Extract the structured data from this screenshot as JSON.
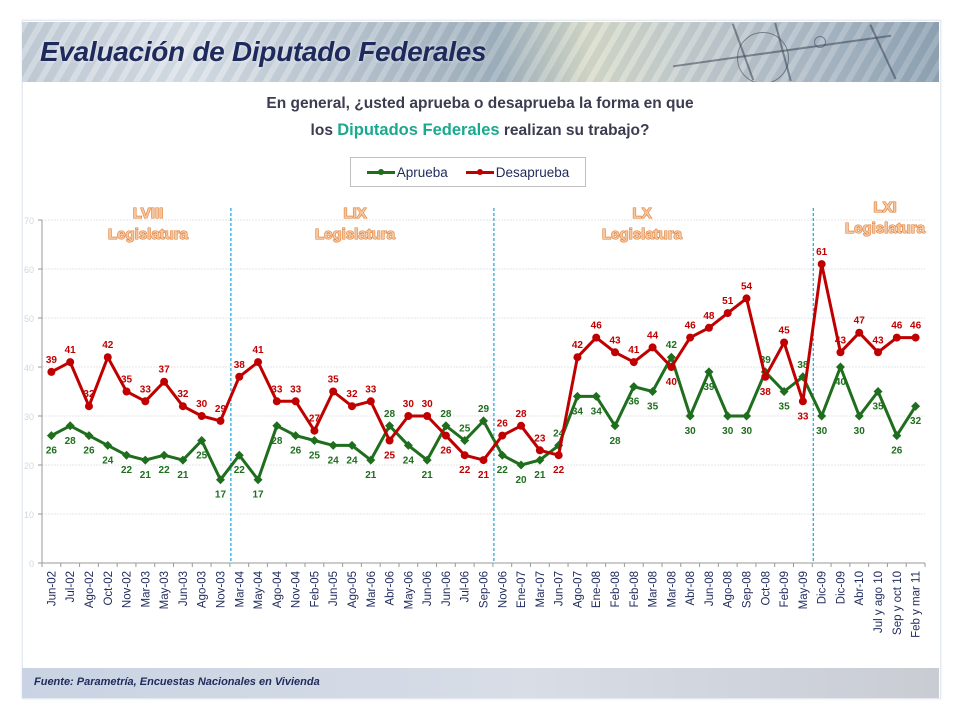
{
  "header": {
    "title": "Evaluación de Diputado Federales"
  },
  "question": {
    "line1": "En general, ¿usted aprueba o desaprueba la forma en que",
    "line2_prefix": "los",
    "line2_highlight": "Diputados Federales",
    "line2_suffix": "realizan su trabajo?"
  },
  "legend": {
    "items": [
      {
        "label": "Aprueba",
        "color": "#1e6e1e"
      },
      {
        "label": "Desaprueba",
        "color": "#c00000"
      }
    ]
  },
  "footer": {
    "source": "Fuente: Parametría, Encuestas Nacionales en Vivienda"
  },
  "chart_data": {
    "type": "line",
    "title": "Evaluación de Diputado Federales",
    "xlabel": "",
    "ylabel": "",
    "ylim": [
      0,
      70
    ],
    "yticks": [
      0,
      10,
      20,
      30,
      40,
      50,
      60,
      70
    ],
    "grid": true,
    "legend_position": "top-center",
    "categories": [
      "Jun-02",
      "Jul-02",
      "Ago-02",
      "Oct-02",
      "Nov-02",
      "Mar-03",
      "May-03",
      "Jun-03",
      "Ago-03",
      "Nov-03",
      "Mar-04",
      "May-04",
      "Ago-04",
      "Nov-04",
      "Feb-05",
      "Jun-05",
      "Ago-05",
      "Mar-06",
      "Abr-06",
      "May-06",
      "Jun-06",
      "Jun-06",
      "Jul-06",
      "Sep-06",
      "Nov-06",
      "Ene-07",
      "Mar-07",
      "Jun-07",
      "Ago-07",
      "Ene-08",
      "Feb-08",
      "Feb-08",
      "Mar-08",
      "Mar-08",
      "Abr-08",
      "Jun-08",
      "Ago-08",
      "Sep-08",
      "Oct-08",
      "Feb-09",
      "May-09",
      "Dic-09",
      "Dic-09",
      "Abr-10",
      "Jul y ago 10",
      "Sep y oct 10",
      "Feb y mar 11"
    ],
    "series": [
      {
        "name": "Aprueba",
        "color": "#1e6e1e",
        "marker": "diamond",
        "values": [
          26,
          28,
          26,
          24,
          22,
          21,
          22,
          21,
          25,
          17,
          22,
          17,
          28,
          26,
          25,
          24,
          24,
          21,
          28,
          24,
          21,
          28,
          25,
          29,
          22,
          20,
          21,
          24,
          34,
          34,
          28,
          36,
          35,
          42,
          30,
          39,
          30,
          30,
          39,
          35,
          38,
          30,
          40,
          30,
          35,
          26,
          32
        ]
      },
      {
        "name": "Desaprueba",
        "color": "#c00000",
        "marker": "circle",
        "values": [
          39,
          41,
          32,
          42,
          35,
          33,
          37,
          32,
          30,
          29,
          38,
          41,
          33,
          33,
          27,
          35,
          32,
          33,
          25,
          30,
          30,
          26,
          22,
          21,
          26,
          28,
          23,
          22,
          42,
          46,
          43,
          41,
          44,
          40,
          46,
          48,
          51,
          54,
          38,
          45,
          33,
          61,
          43,
          47,
          43,
          46,
          46
        ]
      }
    ],
    "annotations": [
      {
        "type": "period",
        "label_top": "LVIII",
        "label_bottom": "Legislatura",
        "start_index": 0,
        "end_index": 9
      },
      {
        "type": "period",
        "label_top": "LIX",
        "label_bottom": "Legislatura",
        "start_index": 10,
        "end_index": 23
      },
      {
        "type": "period",
        "label_top": "LX",
        "label_bottom": "Legislatura",
        "start_index": 24,
        "end_index": 40
      },
      {
        "type": "period",
        "label_top": "LXI",
        "label_bottom": "Legislatura",
        "start_index": 41,
        "end_index": 46
      }
    ],
    "dividers_between_indices": [
      [
        9,
        10
      ],
      [
        23,
        24
      ],
      [
        40,
        41
      ]
    ]
  }
}
